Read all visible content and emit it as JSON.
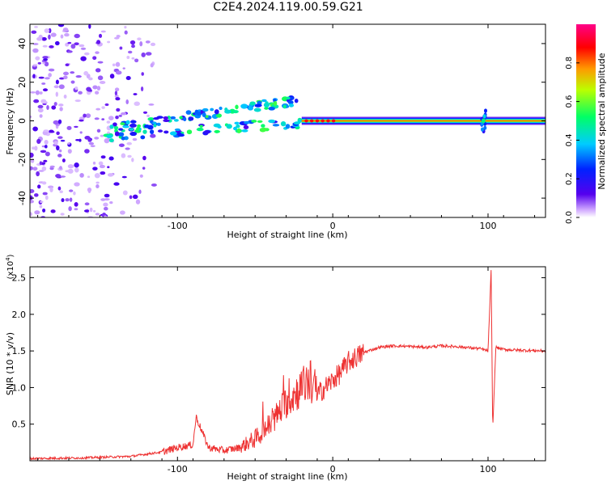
{
  "title": "C2E4.2024.119.00.59.G21",
  "colors": {
    "snr_line": "#ee3333",
    "spectrogram_low": "#ffffff",
    "spectrogram_mid": "#5500ee",
    "spectrogram_high": "#ff0000"
  },
  "chart_data": [
    {
      "type": "heatmap",
      "title": "C2E4.2024.119.00.59.G21",
      "xlabel": "Height of straight line (km)",
      "ylabel": "Frequency (Hz)",
      "xlim": [
        -195,
        137
      ],
      "ylim": [
        -50,
        50
      ],
      "xticks": [
        -100,
        0,
        100
      ],
      "yticks": [
        -40,
        -20,
        0,
        20,
        40
      ],
      "grid": false,
      "colorbar": {
        "label": "Normalized spectral amplitude",
        "ticks": [
          "0.0",
          "0.2",
          "0.4",
          "0.6",
          "0.8"
        ],
        "range": [
          0,
          1
        ],
        "colormap": "rainbow (white-violet-blue-cyan-green-yellow-red-magenta)"
      },
      "features": {
        "noise_region_x": [
          -195,
          -115
        ],
        "chirp_band_x": [
          -150,
          -20
        ],
        "steady_carrier_x": [
          -20,
          137
        ],
        "carrier_frequency_hz": 0,
        "spike_at_x": 97
      }
    },
    {
      "type": "line",
      "title": "",
      "xlabel": "Height of straight line (km)",
      "ylabel": "SNR (10 * v/v)",
      "scale_note": "(x10",
      "scale_exponent": "4",
      "xlim": [
        -195,
        137
      ],
      "ylim": [
        0,
        2.65
      ],
      "xticks": [
        -100,
        0,
        100
      ],
      "yticks": [
        "0.5",
        "1.0",
        "1.5",
        "2.0",
        "2.5"
      ],
      "grid": false,
      "series": [
        {
          "x": [
            -195,
            -160,
            -130,
            -110,
            -100,
            -90,
            -88,
            -80,
            -70,
            -60,
            -50,
            -40,
            -30,
            -20,
            -15,
            -10,
            -5,
            0,
            5,
            10,
            20,
            30,
            40,
            50,
            60,
            70,
            80,
            90,
            95,
            100,
            102,
            103,
            105,
            110,
            120,
            137
          ],
          "y": [
            0.03,
            0.04,
            0.06,
            0.12,
            0.18,
            0.22,
            0.6,
            0.18,
            0.14,
            0.18,
            0.3,
            0.5,
            0.8,
            1.0,
            1.1,
            0.9,
            1.0,
            1.1,
            1.2,
            1.35,
            1.48,
            1.55,
            1.57,
            1.56,
            1.55,
            1.57,
            1.56,
            1.54,
            1.53,
            1.5,
            2.6,
            0.4,
            1.55,
            1.52,
            1.51,
            1.5
          ]
        }
      ]
    }
  ]
}
